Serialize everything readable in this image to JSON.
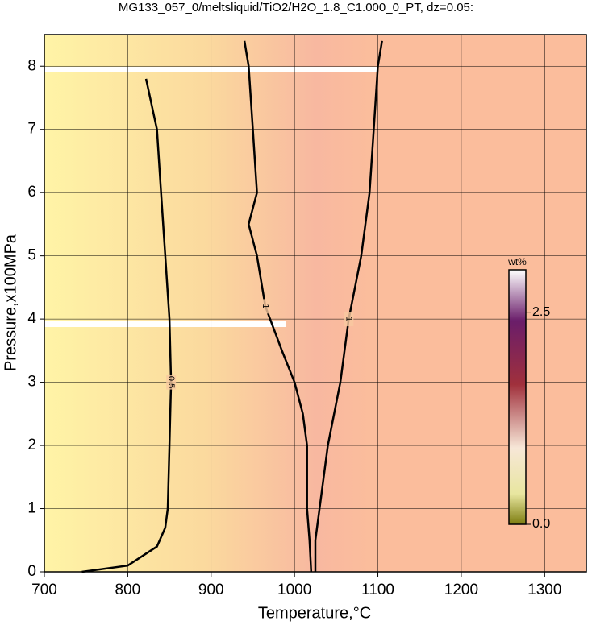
{
  "chart_data": {
    "type": "contour",
    "title": "MG133_057_0/meltsliquid/TiO2/H2O_1.8_C1.000_0_PT, dz=0.05:",
    "xlabel": "Temperature,°C",
    "ylabel": "Pressure,x100MPa",
    "xlim": [
      700,
      1350
    ],
    "ylim": [
      0,
      8.5
    ],
    "xticks": [
      700,
      800,
      900,
      1000,
      1100,
      1200,
      1300
    ],
    "yticks": [
      0,
      1,
      2,
      3,
      4,
      5,
      6,
      7,
      8
    ],
    "grid": true,
    "colorbar": {
      "label": "wt%",
      "clim": [
        0,
        3
      ],
      "ticks": [
        {
          "value": 0,
          "label": "0.0"
        },
        2.5
      ]
    },
    "contours": [
      {
        "level": 0.5,
        "x": [
          745,
          800,
          835,
          845,
          848,
          850,
          852,
          850,
          845,
          840,
          835,
          822
        ],
        "y": [
          0,
          0.1,
          0.4,
          0.7,
          1,
          2,
          3,
          4,
          5,
          6,
          7,
          7.8
        ]
      },
      {
        "level": 1,
        "x": [
          1020,
          1018,
          1015,
          1015,
          1010,
          1000,
          985,
          965,
          955,
          945,
          955,
          950,
          945,
          940
        ],
        "y": [
          0,
          0.5,
          1,
          2,
          2.5,
          3,
          3.5,
          4.2,
          5,
          5.5,
          6,
          7,
          8,
          8.4
        ]
      },
      {
        "level": 1,
        "x": [
          1025,
          1025,
          1030,
          1040,
          1055,
          1065,
          1080,
          1090,
          1095,
          1100,
          1105
        ],
        "y": [
          0,
          0.5,
          1,
          2,
          3,
          4,
          5,
          6,
          7,
          8,
          8.4
        ]
      }
    ]
  }
}
